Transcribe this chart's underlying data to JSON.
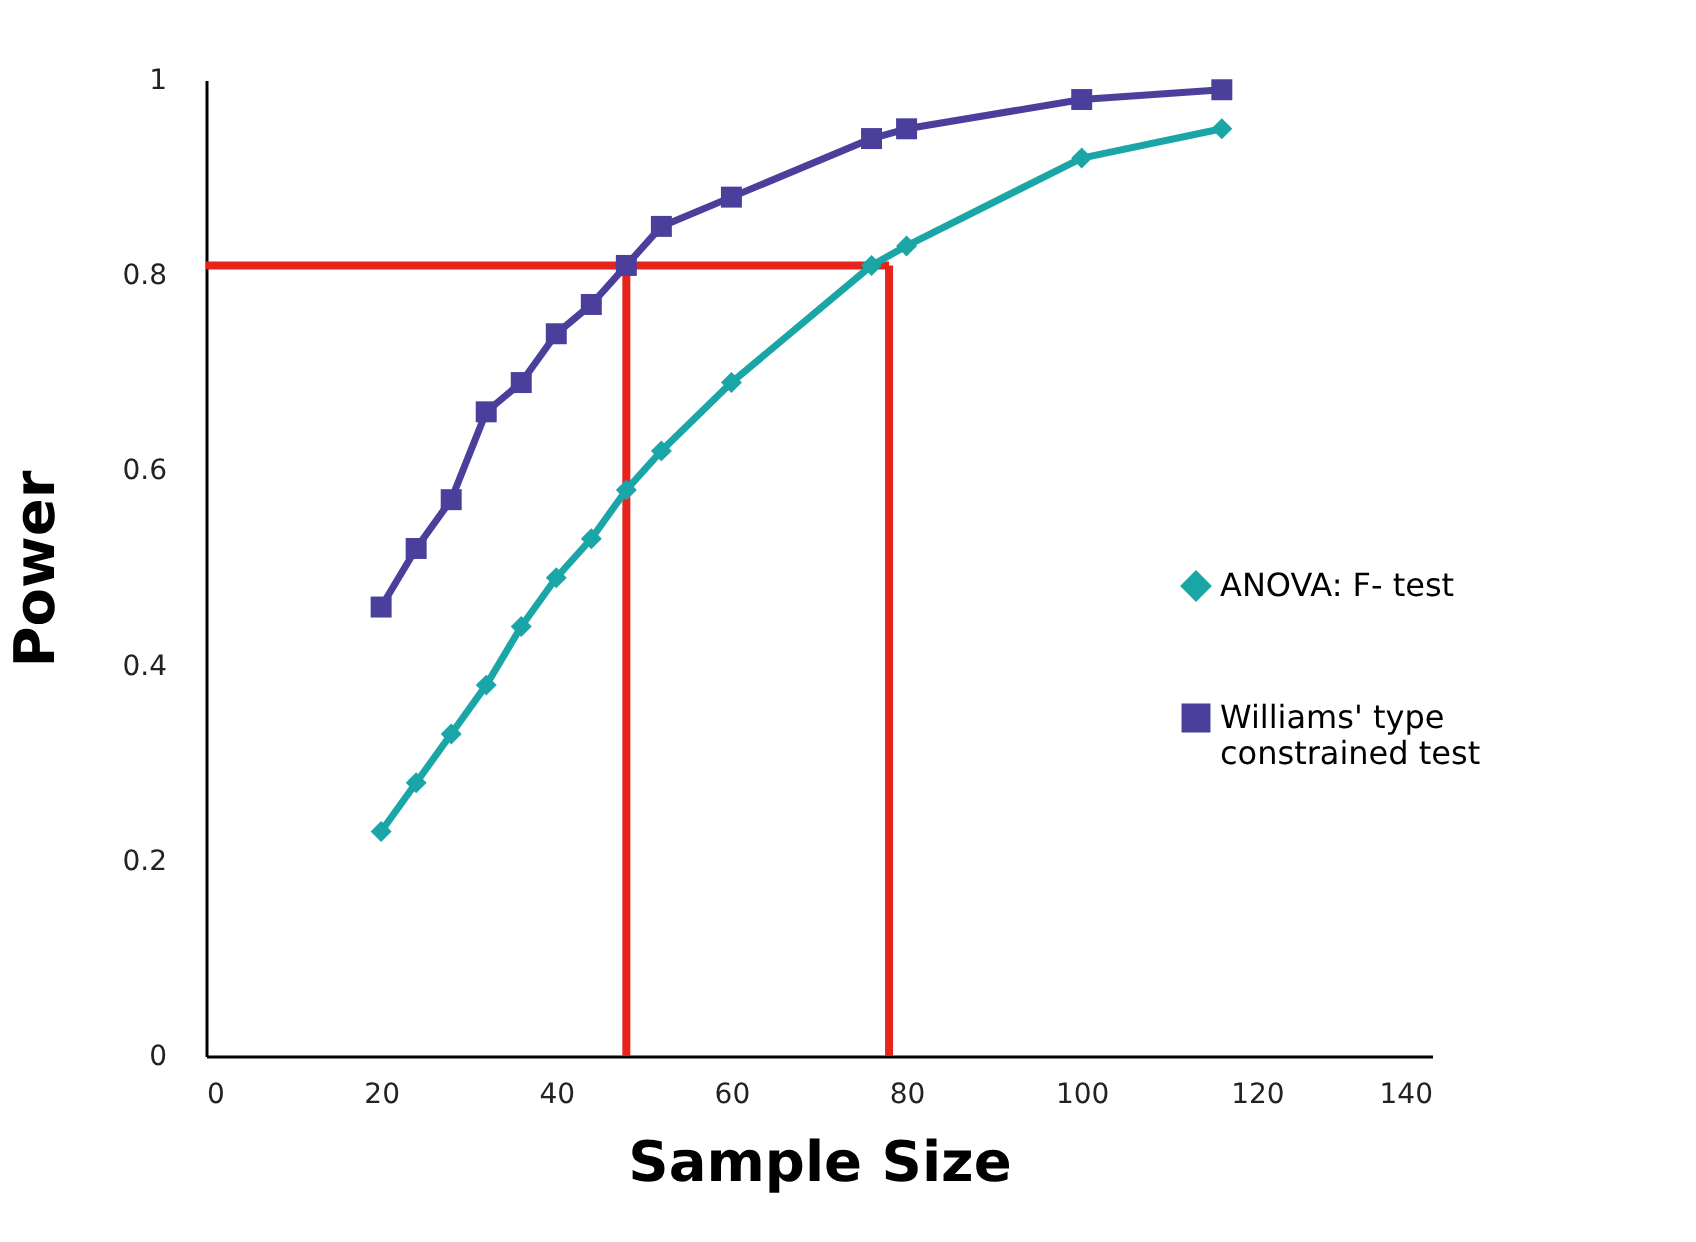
{
  "chart_data": {
    "type": "line",
    "xlabel": "Sample Size",
    "ylabel": "Power",
    "xlim": [
      0,
      140
    ],
    "xticks": [
      0,
      20,
      40,
      60,
      80,
      100,
      120,
      140
    ],
    "ylim": [
      0,
      1
    ],
    "yticks": [
      0,
      0.2,
      0.4,
      0.6,
      0.8,
      1
    ],
    "x": [
      20,
      24,
      28,
      32,
      36,
      40,
      44,
      48,
      52,
      60,
      76,
      80,
      100,
      116
    ],
    "series": [
      {
        "name": "ANOVA: F- test",
        "color": "#1aa6a6",
        "marker": "diamond",
        "values": [
          0.23,
          0.28,
          0.33,
          0.38,
          0.44,
          0.49,
          0.53,
          0.58,
          0.62,
          0.69,
          0.81,
          0.83,
          0.92,
          0.95
        ]
      },
      {
        "name": "Williams' type constrained test",
        "color": "#4b3f9c",
        "marker": "square",
        "values": [
          0.46,
          0.52,
          0.57,
          0.66,
          0.69,
          0.74,
          0.77,
          0.81,
          0.85,
          0.88,
          0.94,
          0.95,
          0.98,
          0.99
        ]
      }
    ],
    "ref_lines": [
      {
        "axis": "y",
        "value": 0.81,
        "color": "#e8231c"
      },
      {
        "axis": "x",
        "value": 48,
        "color": "#e8231c"
      },
      {
        "axis": "x",
        "value": 78,
        "color": "#e8231c"
      }
    ],
    "grid": false,
    "legend": "right"
  }
}
